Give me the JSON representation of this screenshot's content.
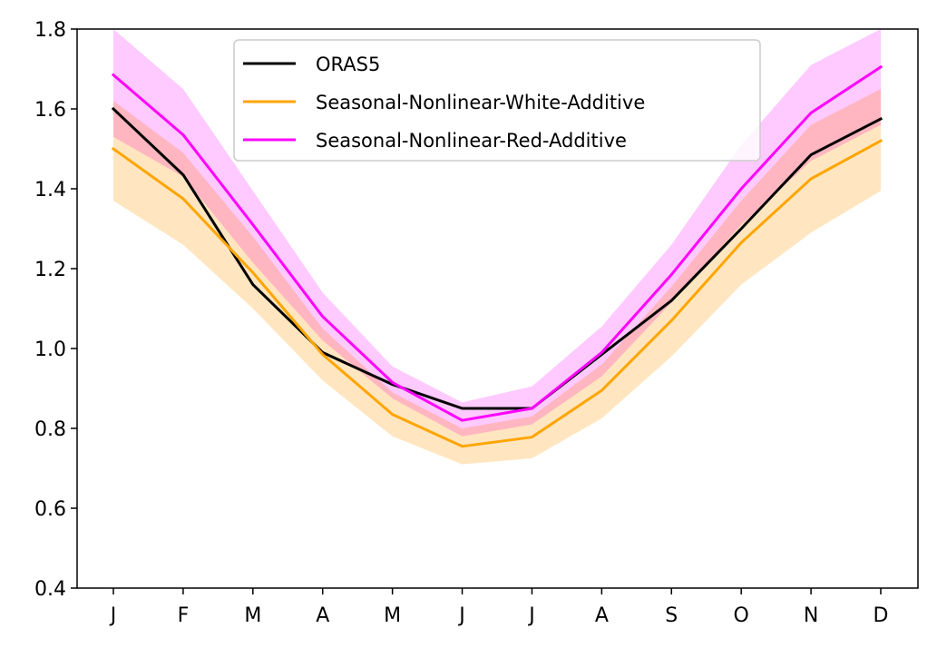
{
  "chart_data": {
    "type": "line",
    "title": "",
    "xlabel": "",
    "ylabel": "",
    "categories": [
      "J",
      "F",
      "M",
      "A",
      "M",
      "J",
      "J",
      "A",
      "S",
      "O",
      "N",
      "D"
    ],
    "ylim": [
      0.4,
      1.8
    ],
    "yticks": [
      "0.4",
      "0.6",
      "0.8",
      "1.0",
      "1.2",
      "1.4",
      "1.6",
      "1.8"
    ],
    "ytick_values": [
      0.4,
      0.6,
      0.8,
      1.0,
      1.2,
      1.4,
      1.6,
      1.8
    ],
    "grid": false,
    "legend_position": "top-center",
    "series": [
      {
        "name": "ORAS5",
        "color": "#000000",
        "values": [
          1.6,
          1.435,
          1.16,
          0.99,
          0.91,
          0.85,
          0.85,
          0.985,
          1.12,
          1.3,
          1.485,
          1.575
        ]
      },
      {
        "name": "Seasonal-Nonlinear-White-Additive",
        "color": "#ffa500",
        "band_color": "#ffe6c0",
        "values": [
          1.5,
          1.375,
          1.19,
          0.985,
          0.835,
          0.755,
          0.778,
          0.895,
          1.07,
          1.265,
          1.425,
          1.52
        ],
        "lower": [
          1.37,
          1.26,
          1.1,
          0.92,
          0.78,
          0.71,
          0.725,
          0.825,
          0.98,
          1.16,
          1.29,
          1.395
        ],
        "upper": [
          1.62,
          1.49,
          1.28,
          1.05,
          0.89,
          0.8,
          0.83,
          0.96,
          1.155,
          1.37,
          1.56,
          1.65
        ]
      },
      {
        "name": "Seasonal-Nonlinear-Red-Additive",
        "color": "#ff00ff",
        "band_color": "#ffcaff",
        "values": [
          1.685,
          1.535,
          1.31,
          1.08,
          0.915,
          0.82,
          0.85,
          0.99,
          1.185,
          1.4,
          1.59,
          1.705
        ],
        "lower": [
          1.53,
          1.43,
          1.215,
          1.02,
          0.875,
          0.78,
          0.81,
          0.93,
          1.115,
          1.31,
          1.47,
          1.56
        ],
        "upper": [
          1.8,
          1.65,
          1.395,
          1.14,
          0.955,
          0.865,
          0.905,
          1.055,
          1.26,
          1.51,
          1.71,
          1.8
        ]
      }
    ]
  }
}
